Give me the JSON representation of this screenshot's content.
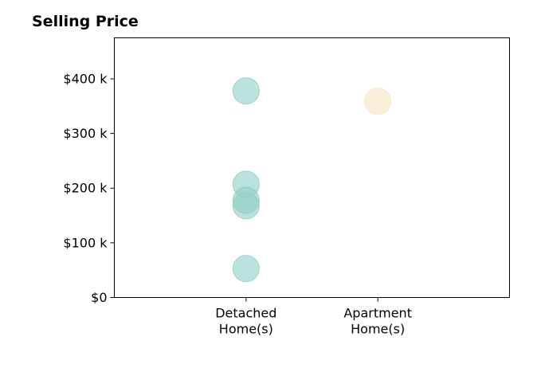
{
  "chart_data": {
    "type": "scatter",
    "title": "Selling Price",
    "categories": [
      "Detached\nHome(s)",
      "Apartment\nHome(s)"
    ],
    "xlim": [
      -1,
      2
    ],
    "ylim": [
      0,
      475000
    ],
    "yticks": [
      0,
      100000,
      200000,
      300000,
      400000
    ],
    "ytick_labels": [
      "$0",
      "$100 k",
      "$200 k",
      "$300 k",
      "$400 k"
    ],
    "grid": false,
    "series": [
      {
        "category": "Detached\nHome(s)",
        "color": "#8fcfc6",
        "values": [
          378000,
          207000,
          178000,
          168000,
          53000
        ]
      },
      {
        "category": "Apartment\nHome(s)",
        "color": "#f6e3bf",
        "values": [
          359000
        ]
      }
    ]
  }
}
